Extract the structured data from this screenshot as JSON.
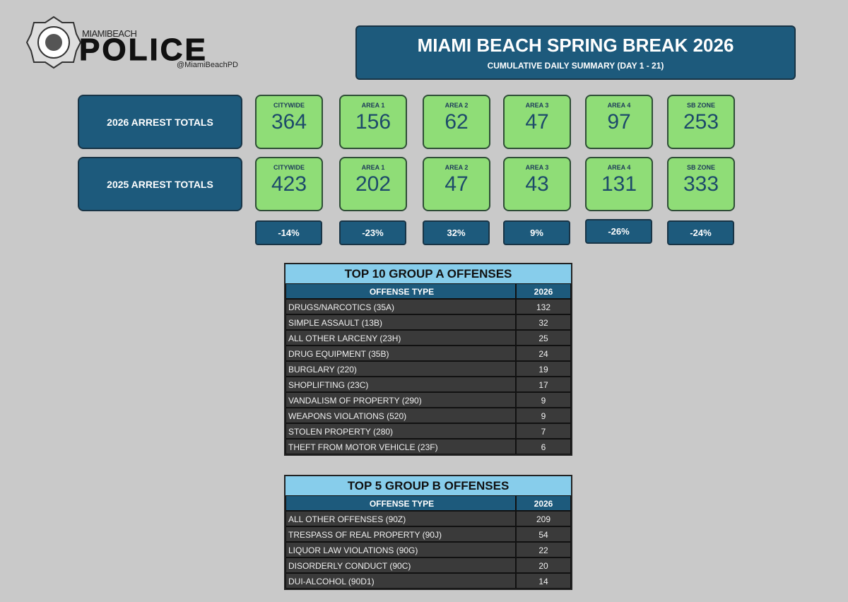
{
  "header": {
    "logo_small": "MIAMIBEACH",
    "logo_big": "POLICE",
    "handle": "@MiamiBeachPD",
    "title": "MIAMI BEACH SPRING BREAK 2026",
    "subtitle": "CUMULATIVE DAILY SUMMARY (DAY 1 - 21)"
  },
  "totals": {
    "rows": [
      {
        "label": "2026 ARREST TOTALS",
        "cells": [
          {
            "area": "CITYWIDE",
            "value": 364
          },
          {
            "area": "AREA 1",
            "value": 156
          },
          {
            "area": "AREA 2",
            "value": 62
          },
          {
            "area": "AREA 3",
            "value": 47
          },
          {
            "area": "AREA 4",
            "value": 97
          },
          {
            "area": "SB ZONE",
            "value": 253
          }
        ]
      },
      {
        "label": "2025 ARREST TOTALS",
        "cells": [
          {
            "area": "CITYWIDE",
            "value": 423
          },
          {
            "area": "AREA 1",
            "value": 202
          },
          {
            "area": "AREA 2",
            "value": 47
          },
          {
            "area": "AREA 3",
            "value": 43
          },
          {
            "area": "AREA 4",
            "value": 131
          },
          {
            "area": "SB ZONE",
            "value": 333
          }
        ]
      }
    ],
    "changes": [
      "-14%",
      "-23%",
      "32%",
      "9%",
      "-26%",
      "-24%"
    ]
  },
  "tables": [
    {
      "title": "TOP 10 GROUP A OFFENSES",
      "columns": [
        "OFFENSE TYPE",
        "2026"
      ],
      "rows": [
        [
          "DRUGS/NARCOTICS (35A)",
          132
        ],
        [
          "SIMPLE ASSAULT (13B)",
          32
        ],
        [
          "ALL OTHER LARCENY (23H)",
          25
        ],
        [
          "DRUG EQUIPMENT (35B)",
          24
        ],
        [
          "BURGLARY (220)",
          19
        ],
        [
          "SHOPLIFTING (23C)",
          17
        ],
        [
          "VANDALISM OF PROPERTY (290)",
          9
        ],
        [
          "WEAPONS VIOLATIONS (520)",
          9
        ],
        [
          "STOLEN PROPERTY (280)",
          7
        ],
        [
          "THEFT FROM MOTOR VEHICLE (23F)",
          6
        ]
      ]
    },
    {
      "title": "TOP 5 GROUP B OFFENSES",
      "columns": [
        "OFFENSE TYPE",
        "2026"
      ],
      "rows": [
        [
          "ALL OTHER OFFENSES (90Z)",
          209
        ],
        [
          "TRESPASS OF REAL PROPERTY (90J)",
          54
        ],
        [
          "LIQUOR LAW VIOLATIONS (90G)",
          22
        ],
        [
          "DISORDERLY CONDUCT (90C)",
          20
        ],
        [
          "DUI-ALCOHOL (90D1)",
          14
        ]
      ]
    }
  ]
}
